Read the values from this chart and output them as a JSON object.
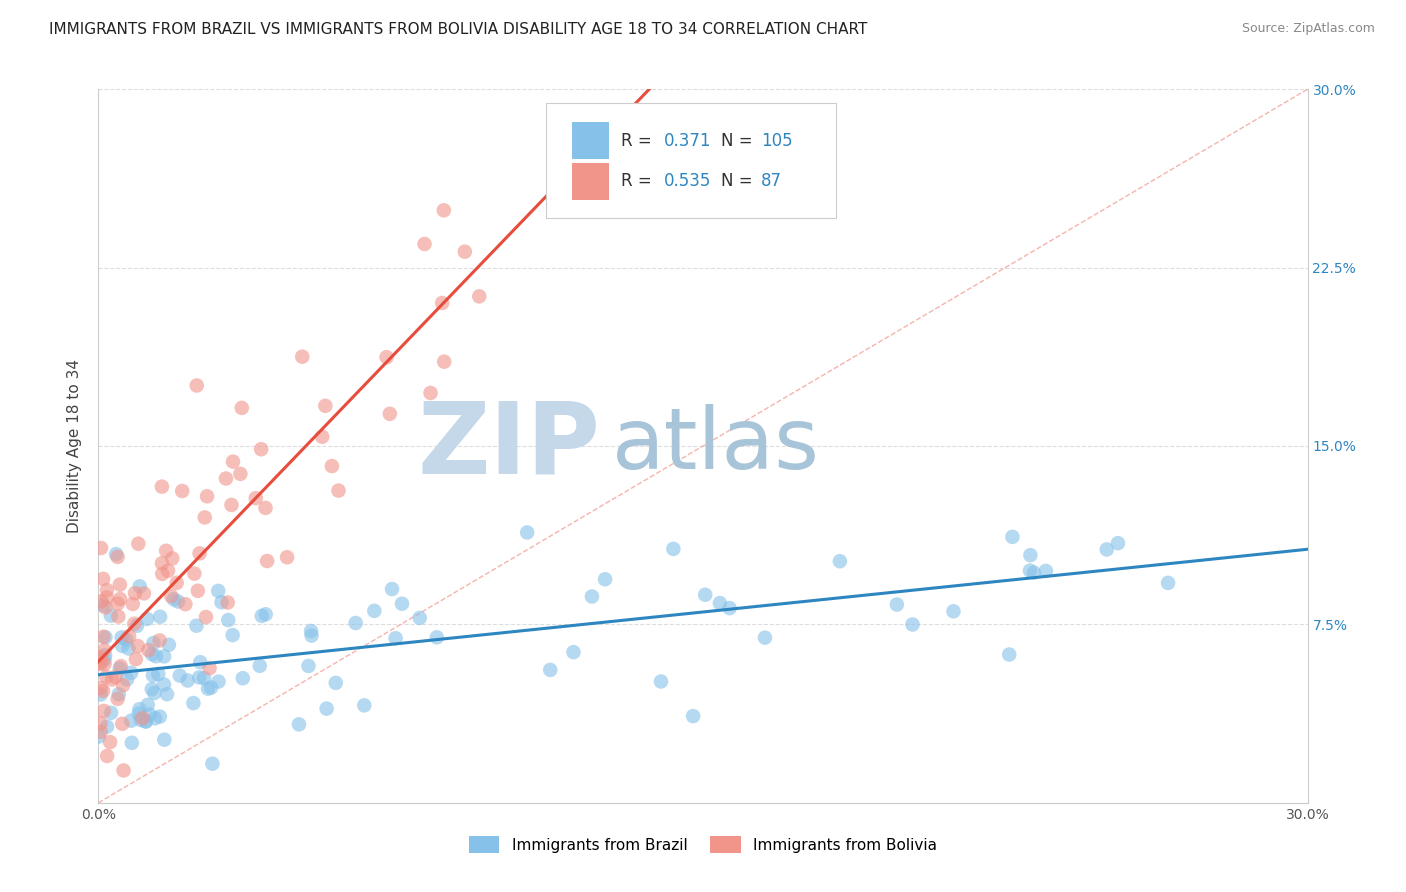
{
  "title": "IMMIGRANTS FROM BRAZIL VS IMMIGRANTS FROM BOLIVIA DISABILITY AGE 18 TO 34 CORRELATION CHART",
  "source": "Source: ZipAtlas.com",
  "ylabel": "Disability Age 18 to 34",
  "legend_label_brazil": "Immigrants from Brazil",
  "legend_label_bolivia": "Immigrants from Bolivia",
  "R_brazil": 0.371,
  "N_brazil": 105,
  "R_bolivia": 0.535,
  "N_bolivia": 87,
  "color_brazil": "#85C1E9",
  "color_bolivia": "#F1948A",
  "trendline_brazil": "#2E86C1",
  "trendline_bolivia": "#E74C3C",
  "xlim": [
    0.0,
    0.3
  ],
  "ylim": [
    0.0,
    0.3
  ],
  "grid_color": "#DDDDDD",
  "background_color": "#FFFFFF",
  "watermark_zip": "ZIP",
  "watermark_atlas": "atlas",
  "watermark_color_zip": "#C5D8EA",
  "watermark_color_atlas": "#A8C4D8",
  "title_fontsize": 11,
  "axis_label_fontsize": 11,
  "tick_fontsize": 10,
  "source_fontsize": 9
}
